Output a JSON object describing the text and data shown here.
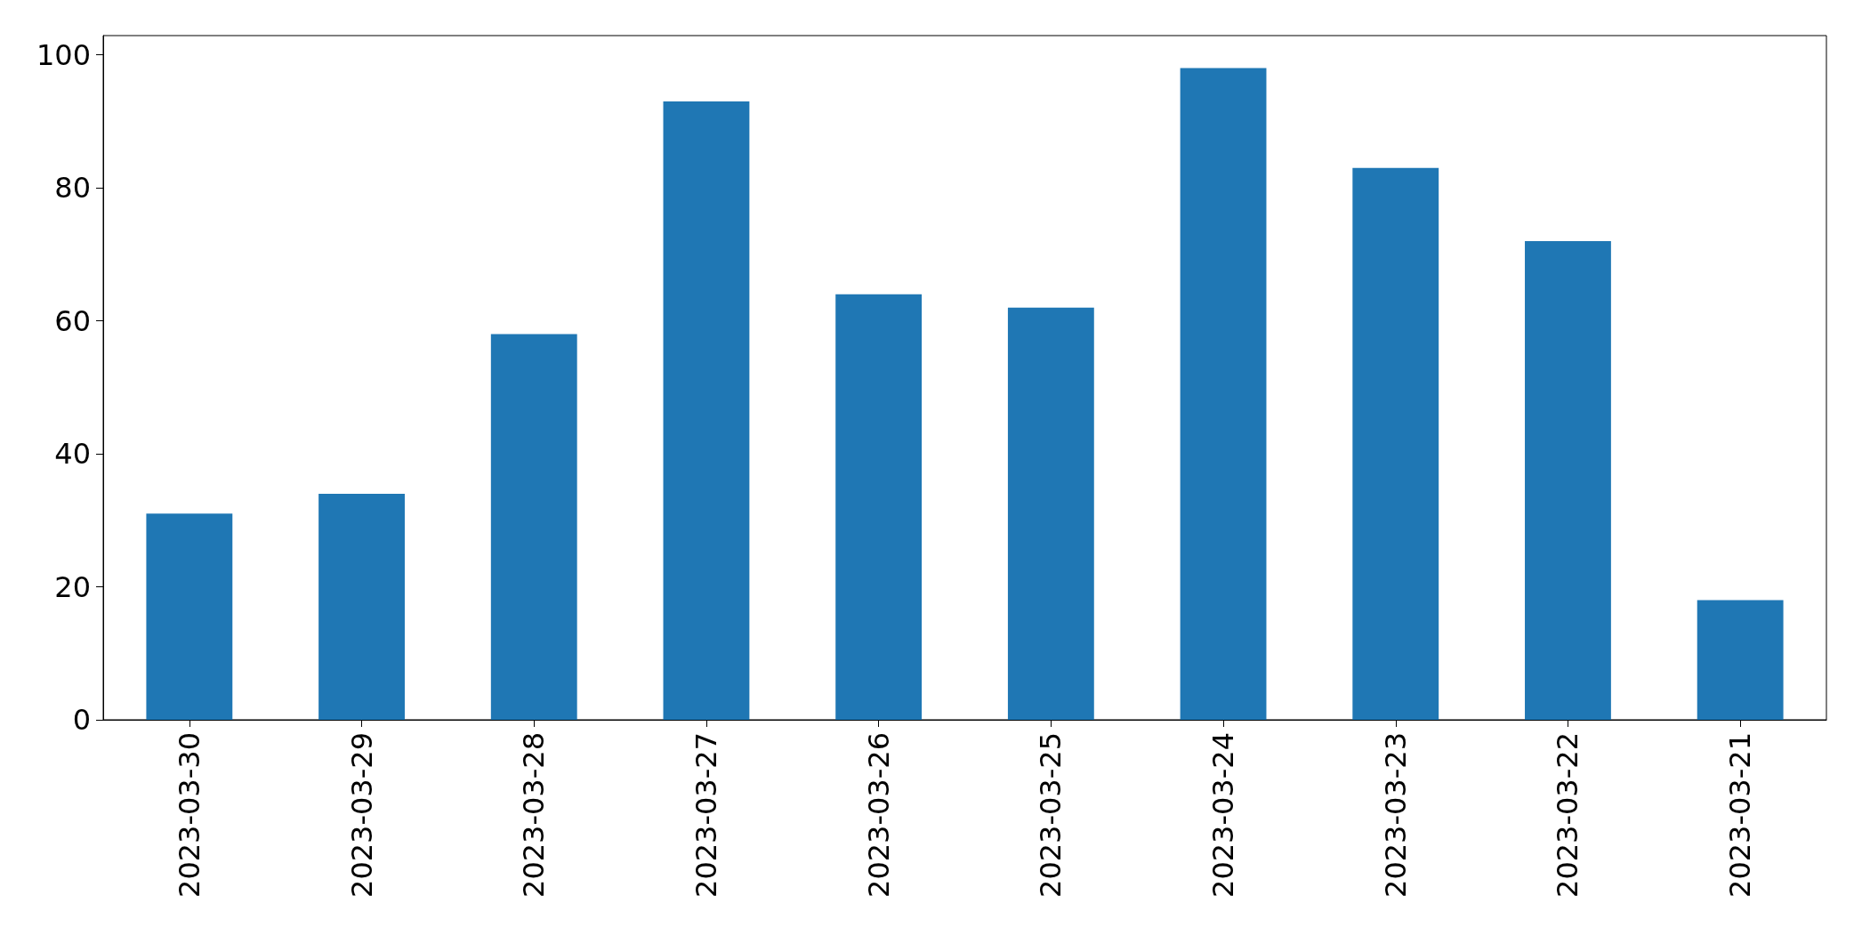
{
  "chart_data": {
    "type": "bar",
    "categories": [
      "2023-03-30",
      "2023-03-29",
      "2023-03-28",
      "2023-03-27",
      "2023-03-26",
      "2023-03-25",
      "2023-03-24",
      "2023-03-23",
      "2023-03-22",
      "2023-03-21"
    ],
    "values": [
      31,
      34,
      58,
      93,
      64,
      62,
      98,
      83,
      72,
      18
    ],
    "color": "#1f77b4",
    "ylim": [
      0,
      102.9
    ],
    "yticks": [
      0,
      20,
      40,
      60,
      80,
      100
    ],
    "grid": false
  }
}
